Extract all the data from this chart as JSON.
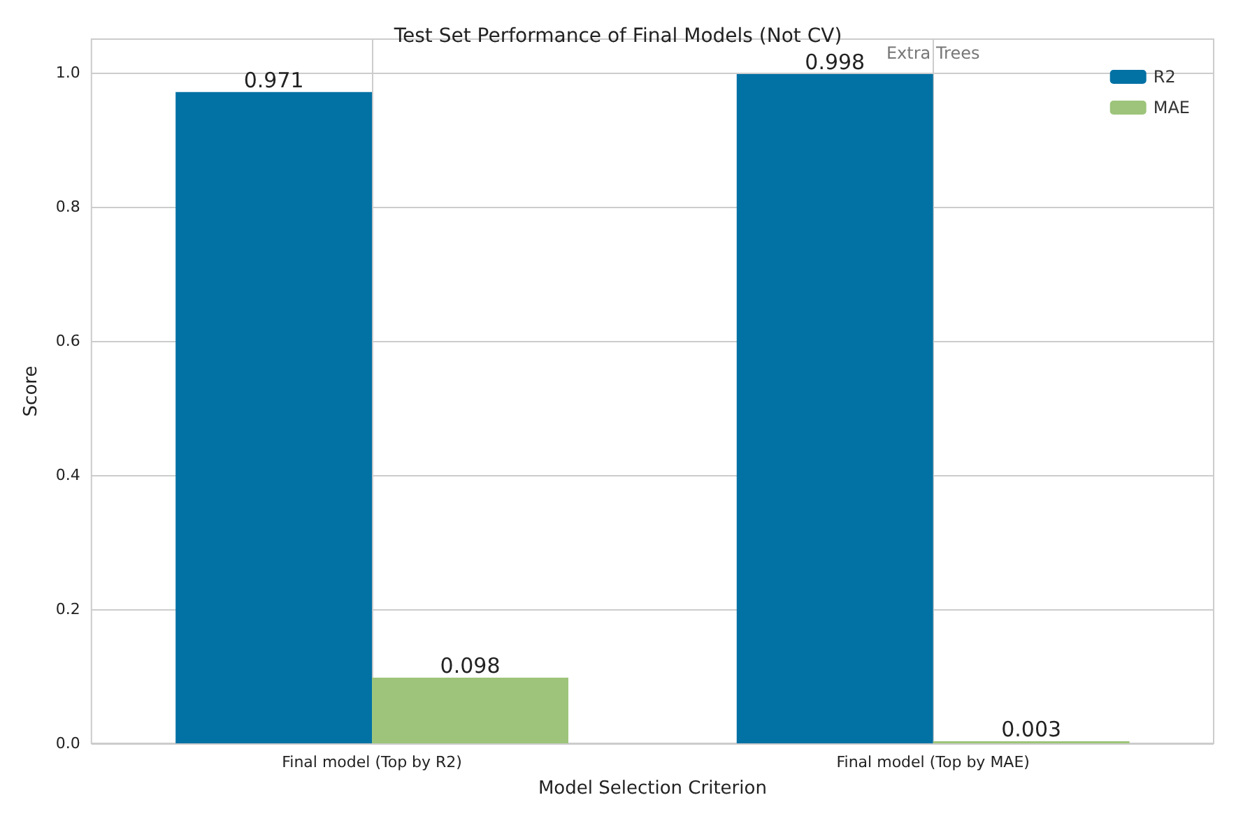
{
  "chart_data": {
    "type": "bar",
    "title": "Test Set Performance of Final Models (Not CV)",
    "xlabel": "Model Selection Criterion",
    "ylabel": "Score",
    "categories": [
      "Final model (Top by R2)",
      "Final model (Top by MAE)"
    ],
    "series": [
      {
        "name": "R2",
        "color": "#0271a4",
        "values": [
          0.971,
          0.998
        ]
      },
      {
        "name": "MAE",
        "color": "#9dc47a",
        "values": [
          0.098,
          0.003
        ]
      }
    ],
    "ylim": [
      0,
      1.05
    ],
    "yticks": [
      {
        "value": 0,
        "label": "0.0"
      },
      0.2,
      0.4,
      0.6,
      0.8,
      {
        "value": 1,
        "label": "1.0"
      }
    ],
    "annotations": [
      "Extra Trees"
    ],
    "data_labels": true,
    "grid": true,
    "legend": "top right"
  }
}
